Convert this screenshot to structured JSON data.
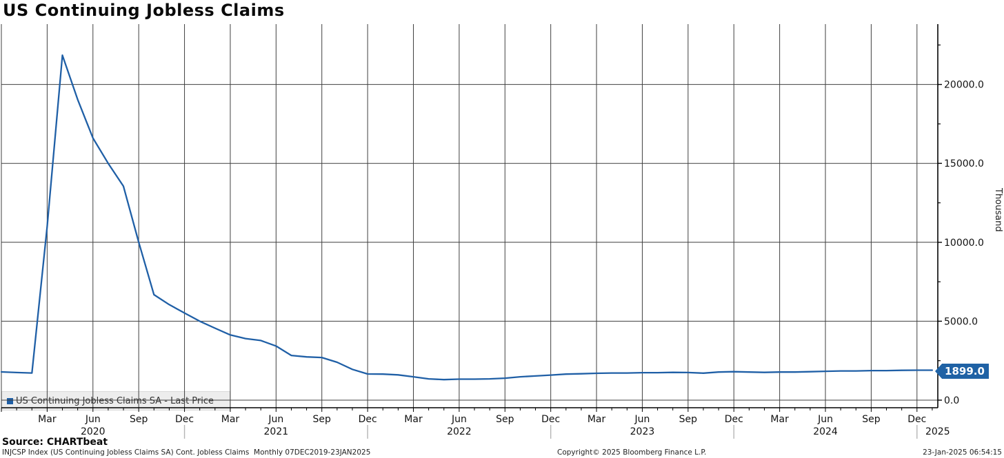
{
  "header": {
    "title": "US Continuing Jobless Claims"
  },
  "chart_data": {
    "type": "line",
    "title": "US Continuing Jobless Claims",
    "ylabel": "Thousand",
    "ylim": [
      0,
      23800
    ],
    "grid": true,
    "legend_position": "bottom-left",
    "y_ticks": [
      {
        "value": 0,
        "label": "0.0"
      },
      {
        "value": 5000,
        "label": "5000.0"
      },
      {
        "value": 10000,
        "label": "10000.0"
      },
      {
        "value": 15000,
        "label": "15000.0"
      },
      {
        "value": 20000,
        "label": "20000.0"
      }
    ],
    "y_minor_step": 2500,
    "x_month_labels": {
      "3": "Mar",
      "6": "Jun",
      "9": "Sep",
      "0": "Dec"
    },
    "x_years": [
      {
        "label": "2020",
        "month_index": 6,
        "anchor": "middle"
      },
      {
        "label": "2021",
        "month_index": 18,
        "anchor": "middle"
      },
      {
        "label": "2022",
        "month_index": 30,
        "anchor": "middle"
      },
      {
        "label": "2023",
        "month_index": 42,
        "anchor": "middle"
      },
      {
        "label": "2024",
        "month_index": 54,
        "anchor": "middle"
      },
      {
        "label": "2025",
        "month_index": 60.55,
        "anchor": "start"
      }
    ],
    "year_divider_month_indices": [
      12,
      24,
      36,
      48,
      60
    ],
    "x_range_label": "07DEC2019-23JAN2025",
    "series": [
      {
        "name": "US Continuing Jobless Claims SA - Last Price",
        "color": "#1f5fa6",
        "x": [
          "2019-12",
          "2020-01",
          "2020-02",
          "2020-03",
          "2020-04",
          "2020-05",
          "2020-06",
          "2020-07",
          "2020-08",
          "2020-09",
          "2020-10",
          "2020-11",
          "2020-12",
          "2021-01",
          "2021-02",
          "2021-03",
          "2021-04",
          "2021-05",
          "2021-06",
          "2021-07",
          "2021-08",
          "2021-09",
          "2021-10",
          "2021-11",
          "2021-12",
          "2022-01",
          "2022-02",
          "2022-03",
          "2022-04",
          "2022-05",
          "2022-06",
          "2022-07",
          "2022-08",
          "2022-09",
          "2022-10",
          "2022-11",
          "2022-12",
          "2023-01",
          "2023-02",
          "2023-03",
          "2023-04",
          "2023-05",
          "2023-06",
          "2023-07",
          "2023-08",
          "2023-09",
          "2023-10",
          "2023-11",
          "2023-12",
          "2024-01",
          "2024-02",
          "2024-03",
          "2024-04",
          "2024-05",
          "2024-06",
          "2024-07",
          "2024-08",
          "2024-09",
          "2024-10",
          "2024-11",
          "2024-12",
          "2025-01"
        ],
        "values": [
          1790,
          1750,
          1720,
          11000,
          21850,
          19050,
          16600,
          15000,
          13550,
          10000,
          6680,
          6050,
          5520,
          5000,
          4560,
          4130,
          3900,
          3780,
          3430,
          2830,
          2740,
          2700,
          2400,
          1950,
          1660,
          1650,
          1600,
          1480,
          1350,
          1300,
          1330,
          1330,
          1350,
          1390,
          1480,
          1530,
          1590,
          1650,
          1670,
          1700,
          1720,
          1720,
          1740,
          1740,
          1760,
          1750,
          1710,
          1780,
          1800,
          1780,
          1760,
          1780,
          1780,
          1800,
          1830,
          1850,
          1850,
          1870,
          1870,
          1890,
          1900,
          1899
        ]
      }
    ],
    "last_price": 1899.0,
    "last_price_label": "1899.0"
  },
  "legend": {
    "label": "US Continuing Jobless Claims SA - Last Price",
    "swatch_color": "#1f5fa6"
  },
  "colors": {
    "line": "#1f5fa6",
    "flag_bg": "#1f62a5",
    "grid": "#3f3f3f",
    "axis": "#000000",
    "year_divider": "#b5b5b5"
  },
  "footer": {
    "source": "Source: CHARTbeat",
    "left": "INJCSP Index (US Continuing Jobless Claims SA) Cont. Jobless Claims  Monthly 07DEC2019-23JAN2025",
    "center": "Copyright© 2025 Bloomberg Finance L.P.",
    "right": "23-Jan-2025 06:54:15"
  }
}
